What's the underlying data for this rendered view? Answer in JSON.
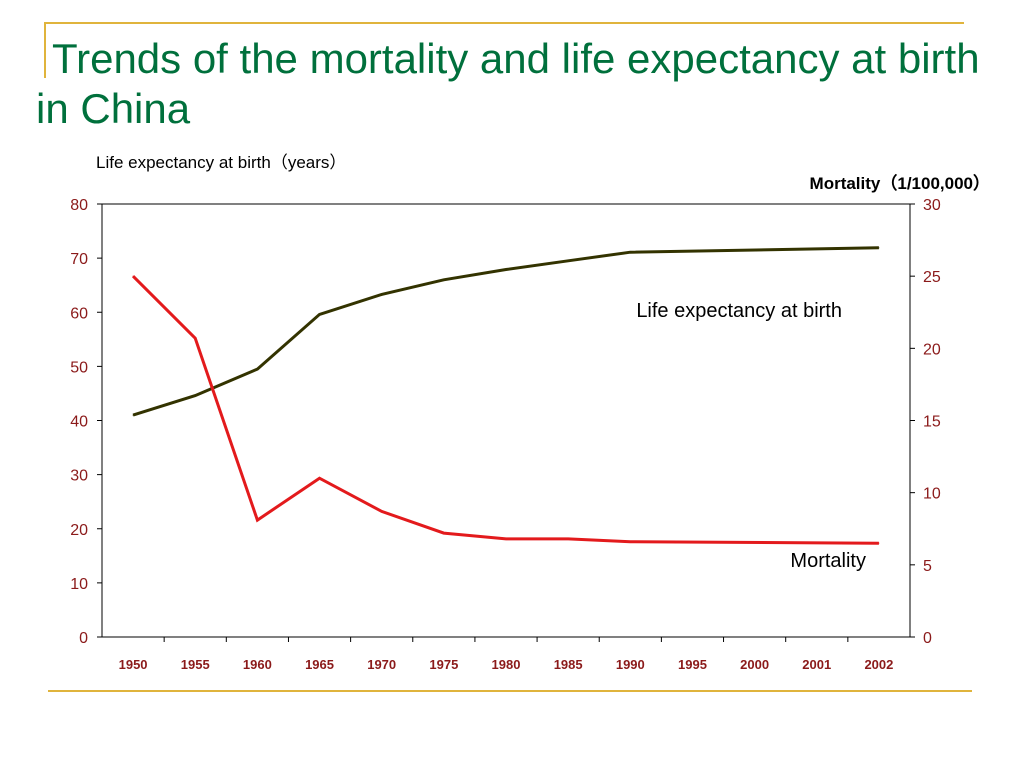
{
  "title": "Trends of the mortality and life expectancy at birth in China",
  "colors": {
    "title": "#00703c",
    "accent_lines": "#e0b43c",
    "life_expectancy": "#333300",
    "mortality": "#e31a1c",
    "ticks": "#8b1a1a"
  },
  "chart_data": {
    "type": "line",
    "categories": [
      "1950",
      "1955",
      "1960",
      "1965",
      "1970",
      "1975",
      "1980",
      "1985",
      "1990",
      "1995",
      "2000",
      "2001",
      "2002"
    ],
    "left_axis": {
      "label": "Life expectancy at birth（years）",
      "ylim": [
        0,
        80
      ],
      "ticks": [
        "0",
        "10",
        "20",
        "30",
        "40",
        "50",
        "60",
        "70",
        "80"
      ]
    },
    "right_axis": {
      "label": "Mortality（1/100,000）",
      "ylim": [
        0,
        30
      ],
      "ticks": [
        "0",
        "5",
        "10",
        "15",
        "20",
        "25",
        "30"
      ]
    },
    "series": [
      {
        "name": "Life expectancy at birth",
        "axis": "left",
        "x": [
          "1950",
          "1955",
          "1960",
          "1965",
          "1970",
          "1975",
          "1980",
          "1985",
          "1990",
          "2002"
        ],
        "values": [
          41,
          44.6,
          49.5,
          59.6,
          63.3,
          66,
          67.9,
          69.5,
          71.1,
          71.9
        ]
      },
      {
        "name": "Mortality",
        "axis": "right",
        "x": [
          "1950",
          "1955",
          "1960",
          "1965",
          "1970",
          "1975",
          "1980",
          "1985",
          "1990",
          "2002"
        ],
        "values": [
          25,
          20.7,
          8.1,
          11,
          8.7,
          7.2,
          6.8,
          6.8,
          6.6,
          6.5
        ]
      }
    ],
    "grid": false,
    "legend": "inline labels"
  }
}
